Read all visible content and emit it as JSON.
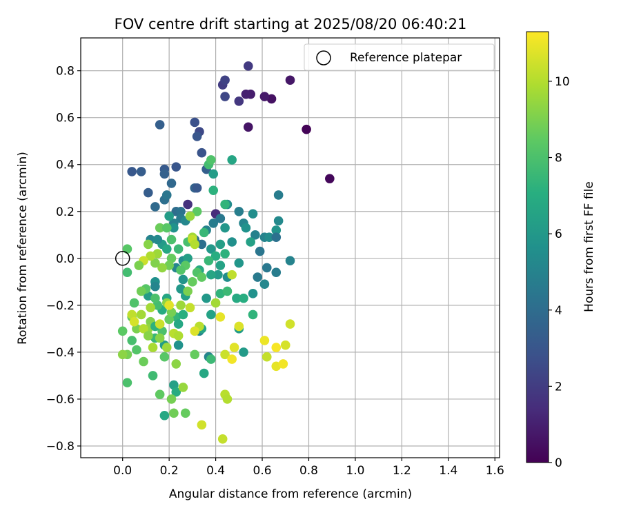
{
  "chart_data": {
    "type": "scatter",
    "title": "FOV centre drift starting at 2025/08/20 06:40:21",
    "xlabel": "Angular distance from reference (arcmin)",
    "ylabel": "Rotation from reference (arcmin)",
    "xlim": [
      -0.18,
      1.62
    ],
    "ylim": [
      -0.85,
      0.94
    ],
    "xticks": [
      "0.0",
      "0.2",
      "0.4",
      "0.6",
      "0.8",
      "1.0",
      "1.2",
      "1.4",
      "1.6"
    ],
    "yticks": [
      "−0.8",
      "−0.6",
      "−0.4",
      "−0.2",
      "0.0",
      "0.2",
      "0.4",
      "0.6",
      "0.8"
    ],
    "grid": true,
    "legend": {
      "placement": "top-right",
      "entries": [
        "Reference platepar"
      ]
    },
    "colorbar": {
      "label": "Hours from first FF file",
      "colormap": "viridis",
      "range": [
        0,
        11.3
      ],
      "ticks": [
        "0",
        "2",
        "4",
        "6",
        "8",
        "10"
      ]
    },
    "reference_point": {
      "x": 0.0,
      "y": 0.0
    },
    "series": [
      {
        "points": [
          [
            0.79,
            0.55,
            0.1
          ],
          [
            0.89,
            0.34,
            0.2
          ],
          [
            0.72,
            0.76,
            0.7
          ],
          [
            0.64,
            0.68,
            0.5
          ],
          [
            0.61,
            0.69,
            0.8
          ],
          [
            0.55,
            0.7,
            0.9
          ],
          [
            0.53,
            0.7,
            1.0
          ],
          [
            0.54,
            0.56,
            0.6
          ],
          [
            0.54,
            0.82,
            1.9
          ],
          [
            0.5,
            0.67,
            1.8
          ],
          [
            0.43,
            0.74,
            2.0
          ],
          [
            0.44,
            0.76,
            2.2
          ],
          [
            0.44,
            0.69,
            2.4
          ],
          [
            0.4,
            0.19,
            1.4
          ],
          [
            0.28,
            0.23,
            1.6
          ],
          [
            0.33,
            0.54,
            2.5
          ],
          [
            0.31,
            0.58,
            2.8
          ],
          [
            0.32,
            0.52,
            3.0
          ],
          [
            0.16,
            0.57,
            3.4
          ],
          [
            0.34,
            0.45,
            2.9
          ],
          [
            0.04,
            0.37,
            3.1
          ],
          [
            0.08,
            0.37,
            3.3
          ],
          [
            0.23,
            0.39,
            3.0
          ],
          [
            0.18,
            0.38,
            3.2
          ],
          [
            0.18,
            0.36,
            3.5
          ],
          [
            0.36,
            0.38,
            3.4
          ],
          [
            0.11,
            0.28,
            3.3
          ],
          [
            0.21,
            0.32,
            3.8
          ],
          [
            0.31,
            0.3,
            3.6
          ],
          [
            0.32,
            0.3,
            3.1
          ],
          [
            0.14,
            0.22,
            3.9
          ],
          [
            0.18,
            0.25,
            4.1
          ],
          [
            0.19,
            0.27,
            4.4
          ],
          [
            0.23,
            0.2,
            4.0
          ],
          [
            0.25,
            0.2,
            4.3
          ],
          [
            0.25,
            0.17,
            4.6
          ],
          [
            0.22,
            0.15,
            4.9
          ],
          [
            0.27,
            0.16,
            5.2
          ],
          [
            0.36,
            0.12,
            5.0
          ],
          [
            0.39,
            0.15,
            4.7
          ],
          [
            0.42,
            0.17,
            4.5
          ],
          [
            0.45,
            0.23,
            5.4
          ],
          [
            0.5,
            0.2,
            4.8
          ],
          [
            0.52,
            0.15,
            5.1
          ],
          [
            0.56,
            0.19,
            5.5
          ],
          [
            0.53,
            0.13,
            5.7
          ],
          [
            0.44,
            0.13,
            5.9
          ],
          [
            0.47,
            0.07,
            5.6
          ],
          [
            0.57,
            0.1,
            4.9
          ],
          [
            0.59,
            0.03,
            4.4
          ],
          [
            0.61,
            0.09,
            5.0
          ],
          [
            0.63,
            0.09,
            5.4
          ],
          [
            0.66,
            0.12,
            5.8
          ],
          [
            0.67,
            0.16,
            5.3
          ],
          [
            0.67,
            0.27,
            4.7
          ],
          [
            0.66,
            0.09,
            4.2
          ],
          [
            0.62,
            -0.04,
            4.5
          ],
          [
            0.66,
            -0.06,
            4.7
          ],
          [
            0.72,
            -0.01,
            5.0
          ],
          [
            0.58,
            -0.08,
            4.6
          ],
          [
            0.61,
            -0.11,
            5.2
          ],
          [
            0.56,
            -0.15,
            5.7
          ],
          [
            0.45,
            -0.08,
            5.5
          ],
          [
            0.41,
            -0.07,
            6.1
          ],
          [
            0.5,
            -0.02,
            5.9
          ],
          [
            0.55,
            0.07,
            6.4
          ],
          [
            0.38,
            0.04,
            6.0
          ],
          [
            0.42,
            0.06,
            6.3
          ],
          [
            0.38,
            -0.07,
            6.6
          ],
          [
            0.31,
            0.08,
            4.3
          ],
          [
            0.34,
            0.06,
            4.1
          ],
          [
            0.2,
            0.18,
            6.2
          ],
          [
            0.22,
            0.13,
            5.7
          ],
          [
            0.17,
            0.06,
            6.1
          ],
          [
            0.19,
            0.04,
            6.7
          ],
          [
            0.12,
            0.08,
            5.0
          ],
          [
            0.15,
            0.08,
            5.3
          ],
          [
            0.23,
            -0.04,
            5.1
          ],
          [
            0.26,
            -0.01,
            5.5
          ],
          [
            0.28,
            0.0,
            6.3
          ],
          [
            0.33,
            -0.05,
            6.8
          ],
          [
            0.4,
            0.01,
            7.0
          ],
          [
            0.42,
            -0.03,
            6.5
          ],
          [
            0.44,
            0.02,
            7.2
          ],
          [
            0.37,
            -0.01,
            7.5
          ],
          [
            0.26,
            -0.09,
            5.8
          ],
          [
            0.25,
            -0.13,
            6.0
          ],
          [
            0.27,
            -0.16,
            6.4
          ],
          [
            0.14,
            -0.1,
            5.6
          ],
          [
            0.14,
            -0.12,
            5.1
          ],
          [
            0.11,
            -0.16,
            6.2
          ],
          [
            0.19,
            -0.17,
            6.6
          ],
          [
            0.17,
            -0.22,
            6.9
          ],
          [
            0.23,
            -0.25,
            7.4
          ],
          [
            0.26,
            -0.24,
            7.1
          ],
          [
            0.24,
            -0.28,
            6.7
          ],
          [
            0.36,
            -0.17,
            6.0
          ],
          [
            0.38,
            -0.24,
            6.5
          ],
          [
            0.42,
            -0.15,
            7.3
          ],
          [
            0.45,
            -0.14,
            7.6
          ],
          [
            0.49,
            -0.17,
            6.8
          ],
          [
            0.52,
            -0.17,
            7.0
          ],
          [
            0.56,
            -0.24,
            7.3
          ],
          [
            0.5,
            -0.3,
            6.2
          ],
          [
            0.33,
            -0.31,
            5.0
          ],
          [
            0.34,
            -0.3,
            6.6
          ],
          [
            0.24,
            -0.37,
            5.7
          ],
          [
            0.18,
            -0.37,
            6.2
          ],
          [
            0.37,
            -0.42,
            5.1
          ],
          [
            0.38,
            -0.43,
            7.6
          ],
          [
            0.35,
            -0.49,
            6.7
          ],
          [
            0.22,
            -0.54,
            6.4
          ],
          [
            0.23,
            -0.57,
            6.9
          ],
          [
            0.52,
            -0.4,
            6.1
          ],
          [
            0.31,
            -0.41,
            8.6
          ],
          [
            0.15,
            -0.2,
            7.8
          ],
          [
            0.1,
            -0.13,
            8.3
          ],
          [
            0.08,
            -0.14,
            8.8
          ],
          [
            0.05,
            -0.19,
            8.1
          ],
          [
            0.04,
            -0.25,
            8.5
          ],
          [
            0.06,
            -0.3,
            9.0
          ],
          [
            0.04,
            -0.35,
            7.9
          ],
          [
            0.06,
            -0.39,
            8.2
          ],
          [
            0.09,
            -0.44,
            8.7
          ],
          [
            0.02,
            -0.41,
            8.9
          ],
          [
            0.0,
            -0.31,
            8.4
          ],
          [
            0.02,
            -0.53,
            8.0
          ],
          [
            0.13,
            -0.5,
            7.7
          ],
          [
            0.16,
            -0.58,
            8.5
          ],
          [
            0.18,
            -0.67,
            6.7
          ],
          [
            0.21,
            -0.6,
            8.9
          ],
          [
            0.22,
            -0.66,
            8.8
          ],
          [
            0.27,
            -0.66,
            8.6
          ],
          [
            0.26,
            -0.55,
            9.5
          ],
          [
            0.23,
            -0.45,
            9.3
          ],
          [
            0.18,
            -0.42,
            8.3
          ],
          [
            0.14,
            -0.34,
            7.5
          ],
          [
            0.17,
            -0.31,
            8.0
          ],
          [
            0.2,
            -0.26,
            8.6
          ],
          [
            0.12,
            -0.27,
            9.1
          ],
          [
            0.11,
            -0.3,
            9.4
          ],
          [
            0.14,
            -0.29,
            7.2
          ],
          [
            0.16,
            -0.34,
            9.2
          ],
          [
            0.19,
            -0.38,
            9.6
          ],
          [
            0.22,
            -0.32,
            10.1
          ],
          [
            0.24,
            -0.33,
            9.9
          ],
          [
            0.12,
            -0.21,
            9.7
          ],
          [
            0.14,
            -0.17,
            8.0
          ],
          [
            0.19,
            -0.19,
            9.3
          ],
          [
            0.21,
            -0.23,
            8.9
          ],
          [
            0.25,
            -0.2,
            9.6
          ],
          [
            0.28,
            -0.14,
            9.0
          ],
          [
            0.29,
            -0.21,
            10.3
          ],
          [
            0.3,
            -0.1,
            8.6
          ],
          [
            0.32,
            -0.06,
            8.1
          ],
          [
            0.34,
            -0.08,
            8.5
          ],
          [
            0.27,
            -0.03,
            8.4
          ],
          [
            0.25,
            -0.05,
            8.2
          ],
          [
            0.21,
            0.0,
            8.6
          ],
          [
            0.2,
            -0.03,
            8.8
          ],
          [
            0.17,
            -0.04,
            9.4
          ],
          [
            0.14,
            -0.02,
            9.1
          ],
          [
            0.15,
            0.02,
            9.6
          ],
          [
            0.12,
            0.01,
            9.9
          ],
          [
            0.09,
            -0.01,
            10.4
          ],
          [
            0.07,
            -0.03,
            9.0
          ],
          [
            0.11,
            0.06,
            9.2
          ],
          [
            0.16,
            0.13,
            8.7
          ],
          [
            0.19,
            0.13,
            8.3
          ],
          [
            0.21,
            0.08,
            8.0
          ],
          [
            0.24,
            0.04,
            7.6
          ],
          [
            0.28,
            0.07,
            7.9
          ],
          [
            0.3,
            0.09,
            9.7
          ],
          [
            0.3,
            0.08,
            10.3
          ],
          [
            0.31,
            0.06,
            10.0
          ],
          [
            0.32,
            0.2,
            8.4
          ],
          [
            0.29,
            0.18,
            9.5
          ],
          [
            0.35,
            0.11,
            7.5
          ],
          [
            0.37,
            0.4,
            7.8
          ],
          [
            0.38,
            0.42,
            8.1
          ],
          [
            0.39,
            0.29,
            7.2
          ],
          [
            0.39,
            0.36,
            6.2
          ],
          [
            0.44,
            0.23,
            7.3
          ],
          [
            0.47,
            0.42,
            6.6
          ],
          [
            0.02,
            0.04,
            8.3
          ],
          [
            0.02,
            -0.06,
            7.8
          ],
          [
            0.0,
            -0.41,
            9.3
          ],
          [
            0.04,
            -0.24,
            10.2
          ],
          [
            0.05,
            -0.27,
            10.6
          ],
          [
            0.08,
            -0.24,
            9.7
          ],
          [
            0.09,
            -0.3,
            10.0
          ],
          [
            0.11,
            -0.33,
            9.2
          ],
          [
            0.13,
            -0.38,
            9.8
          ],
          [
            0.16,
            -0.28,
            10.4
          ],
          [
            0.2,
            -0.2,
            10.8
          ],
          [
            0.33,
            -0.29,
            10.1
          ],
          [
            0.31,
            -0.31,
            10.7
          ],
          [
            0.34,
            -0.71,
            10.5
          ],
          [
            0.43,
            -0.77,
            10.3
          ],
          [
            0.44,
            -0.58,
            10.1
          ],
          [
            0.45,
            -0.6,
            10.0
          ],
          [
            0.44,
            -0.41,
            10.4
          ],
          [
            0.48,
            -0.38,
            10.8
          ],
          [
            0.47,
            -0.43,
            11.1
          ],
          [
            0.42,
            -0.25,
            10.9
          ],
          [
            0.4,
            -0.19,
            9.7
          ],
          [
            0.47,
            -0.07,
            10.2
          ],
          [
            0.5,
            -0.29,
            10.7
          ],
          [
            0.61,
            -0.35,
            11.0
          ],
          [
            0.62,
            -0.42,
            10.3
          ],
          [
            0.66,
            -0.38,
            11.2
          ],
          [
            0.66,
            -0.46,
            10.9
          ],
          [
            0.69,
            -0.45,
            11.1
          ],
          [
            0.7,
            -0.37,
            10.6
          ],
          [
            0.72,
            -0.28,
            10.5
          ]
        ]
      }
    ]
  }
}
